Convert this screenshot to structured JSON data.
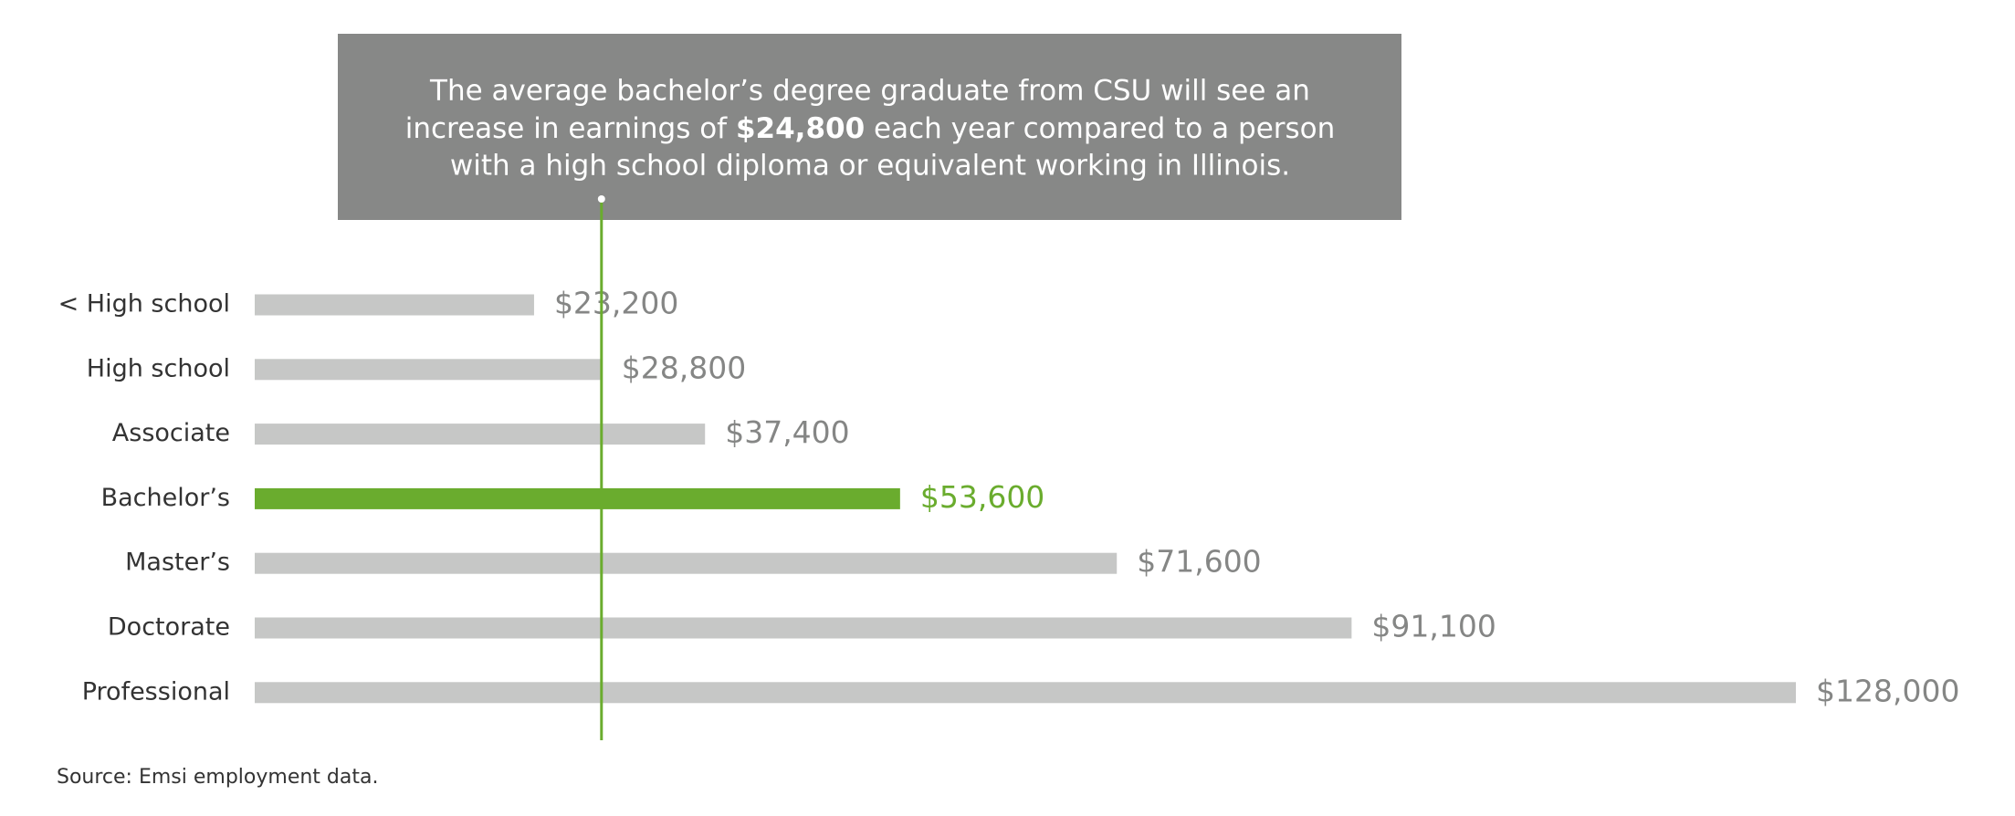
{
  "chart_data": {
    "type": "bar",
    "orientation": "horizontal",
    "annotation": {
      "line1": "The average bachelor’s degree graduate from CSU will see an",
      "line2_start": "increase in earnings of ",
      "highlight": "$24,800",
      "line2_end": " each year compared to a person",
      "line3": "with a high school diploma or equivalent working in Illinois.",
      "color": "#878887"
    },
    "categories": [
      "< High school",
      "High school",
      "Associate",
      "Bachelor’s",
      "Master’s",
      "Doctorate",
      "Professional"
    ],
    "values": [
      23200,
      28800,
      37400,
      53600,
      71600,
      91100,
      128000
    ],
    "value_labels": [
      "$23,200",
      "$28,800",
      "$37,400",
      "$53,600",
      "$71,600",
      "$91,100",
      "$128,000"
    ],
    "colors": [
      "#c6c7c6",
      "#c6c7c6",
      "#c6c7c6",
      "#6aac2e",
      "#c6c7c6",
      "#c6c7c6",
      "#c6c7c6"
    ],
    "label_colors": [
      "#858685",
      "#858685",
      "#858685",
      "#6aac2e",
      "#858685",
      "#858685",
      "#858685"
    ],
    "xlim": [
      0,
      128000
    ],
    "reference": "High school",
    "reference_color": "#6aac2e",
    "source": "Source: Emsi employment data."
  }
}
